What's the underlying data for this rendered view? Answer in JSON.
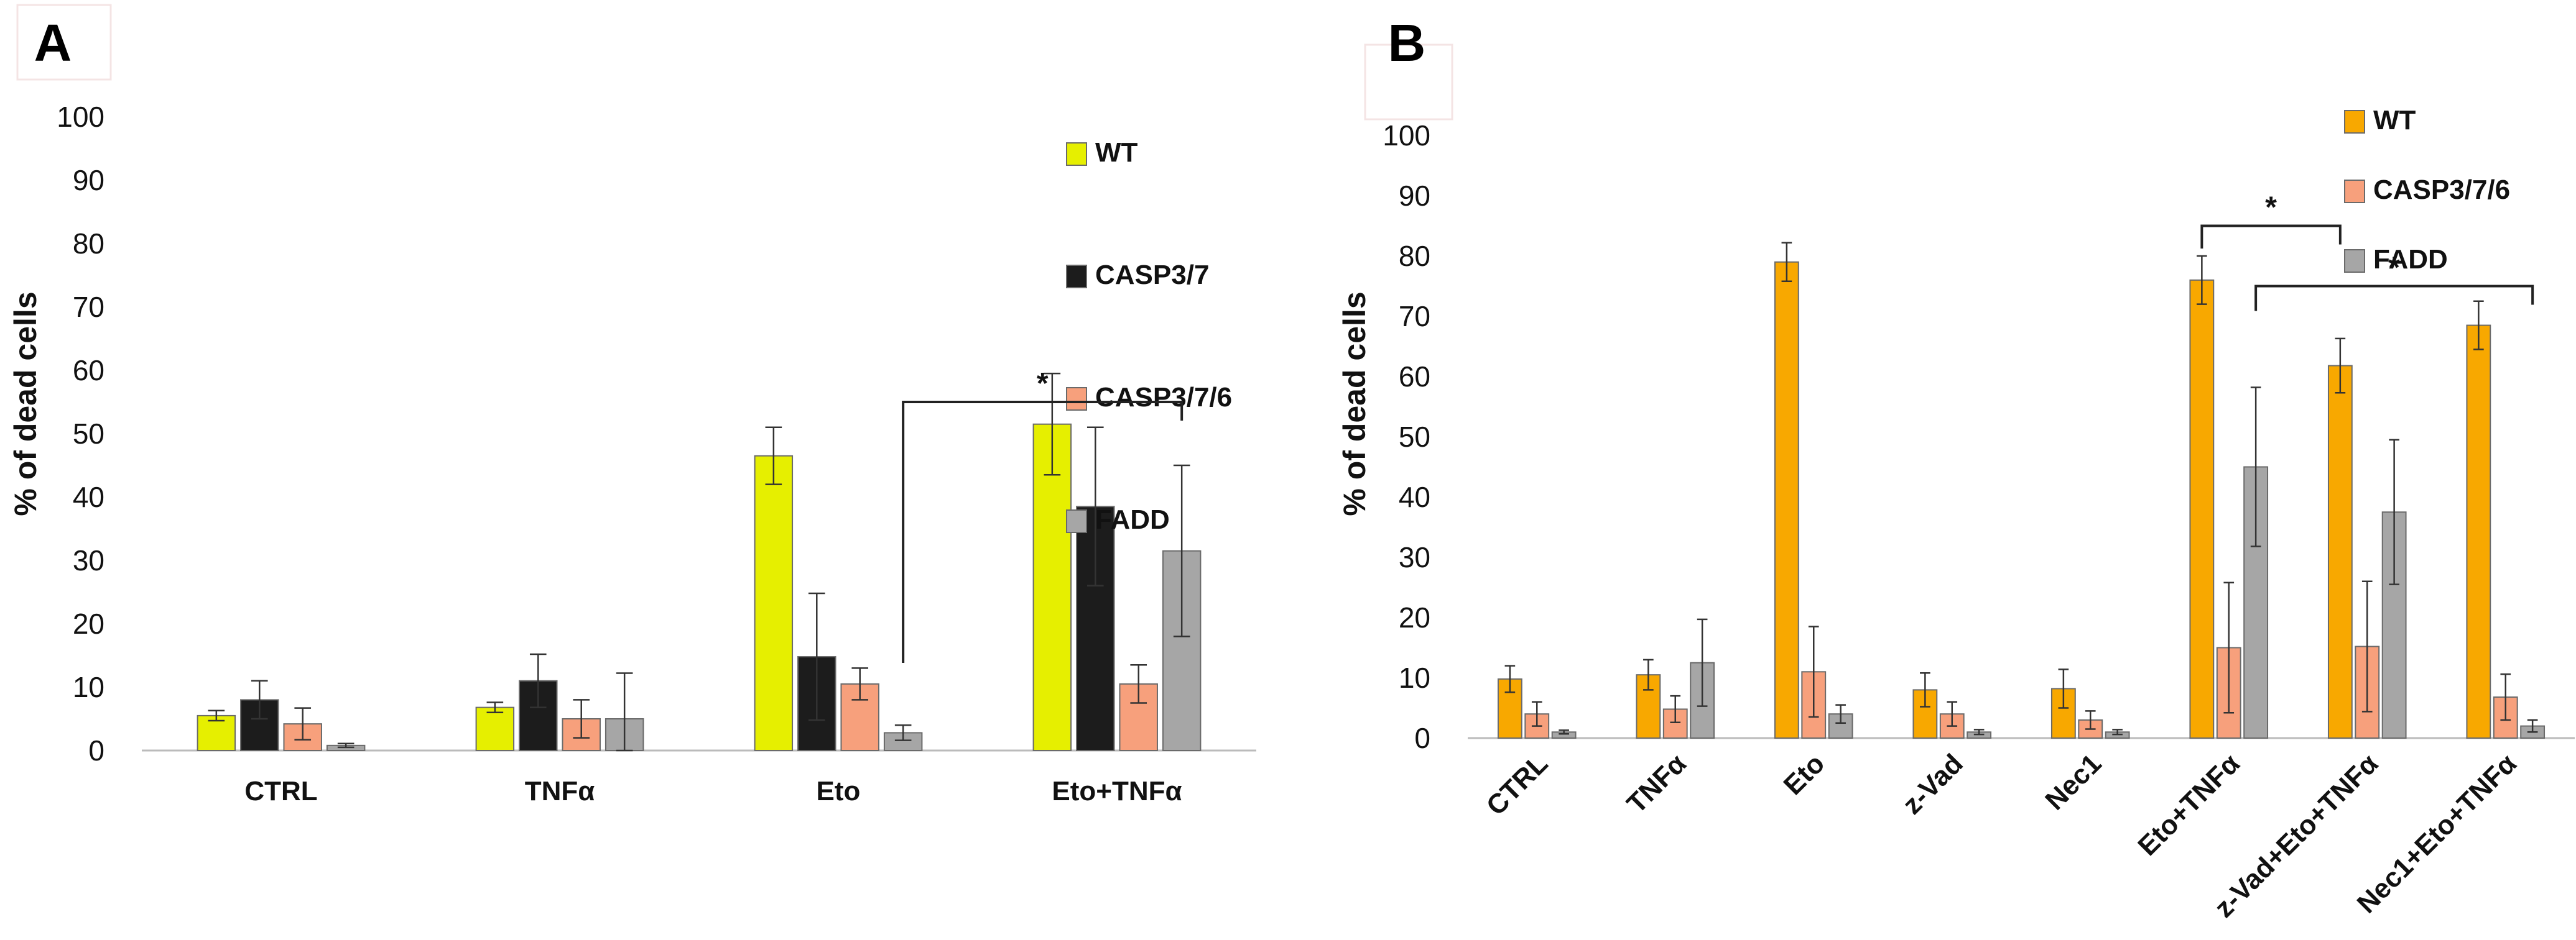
{
  "colors": {
    "WT_A": "#e6ef00",
    "CASP3/7": "#1c1c1c",
    "CASP3/7/6": "#f7a07c",
    "FADD": "#a6a6a6",
    "WT_B": "#f8a800"
  },
  "chart_data": [
    {
      "type": "bar",
      "panel": "A",
      "title": "",
      "xlabel": "",
      "ylabel": "% of dead cells",
      "ylim": [
        0,
        100
      ],
      "yticks": [
        0,
        10,
        20,
        30,
        40,
        50,
        60,
        70,
        80,
        90,
        100
      ],
      "legend_position": "top-right",
      "categories": [
        "CTRL",
        "TNFα",
        "Eto",
        "Eto+TNFα"
      ],
      "series": [
        {
          "name": "WT",
          "color_key": "WT_A",
          "values": [
            5.5,
            6.8,
            46.5,
            51.5
          ],
          "errors": [
            0.8,
            0.8,
            4.5,
            8.0
          ]
        },
        {
          "name": "CASP3/7",
          "color_key": "CASP3/7",
          "values": [
            8.0,
            11.0,
            14.8,
            38.5
          ],
          "errors": [
            3.0,
            4.2,
            10.0,
            12.5
          ]
        },
        {
          "name": "CASP3/7/6",
          "color_key": "CASP3/7/6",
          "values": [
            4.2,
            5.0,
            10.5,
            10.5
          ],
          "errors": [
            2.5,
            3.0,
            2.5,
            3.0
          ]
        },
        {
          "name": "FADD",
          "color_key": "FADD",
          "values": [
            0.8,
            5.0,
            2.8,
            31.5
          ],
          "errors": [
            0.3,
            7.2,
            1.2,
            13.5
          ]
        }
      ],
      "annotations": [
        {
          "text": "*",
          "from": {
            "category": "Eto",
            "series": "FADD"
          },
          "to": {
            "category": "Eto+TNFα",
            "series": "FADD"
          },
          "y": 55
        }
      ]
    },
    {
      "type": "bar",
      "panel": "B",
      "title": "",
      "xlabel": "",
      "ylabel": "% of dead cells",
      "ylim": [
        0,
        100
      ],
      "yticks": [
        0,
        10,
        20,
        30,
        40,
        50,
        60,
        70,
        80,
        90,
        100
      ],
      "legend_position": "top-right",
      "categories": [
        "CTRL",
        "TNFα",
        "Eto",
        "z-Vad",
        "Nec1",
        "Eto+TNFα",
        "z-Vad+Eto+TNFα",
        "Nec1+Eto+TNFα"
      ],
      "series": [
        {
          "name": "WT",
          "color_key": "WT_B",
          "values": [
            9.8,
            10.5,
            79.0,
            8.0,
            8.2,
            76.0,
            61.8,
            68.5
          ],
          "errors": [
            2.2,
            2.5,
            3.2,
            2.8,
            3.2,
            4.0,
            4.5,
            4.0
          ]
        },
        {
          "name": "CASP3/7/6",
          "color_key": "CASP3/7/6",
          "values": [
            4.0,
            4.8,
            11.0,
            4.0,
            3.0,
            15.0,
            15.2,
            6.8
          ],
          "errors": [
            2.0,
            2.2,
            7.5,
            2.0,
            1.5,
            10.8,
            10.8,
            3.8
          ]
        },
        {
          "name": "FADD",
          "color_key": "FADD",
          "values": [
            1.0,
            12.5,
            4.0,
            1.0,
            1.0,
            45.0,
            37.5,
            2.0
          ],
          "errors": [
            0.3,
            7.2,
            1.5,
            0.4,
            0.4,
            13.2,
            12.0,
            1.0
          ]
        }
      ],
      "annotations": [
        {
          "text": "*",
          "from": {
            "category": "Eto+TNFα",
            "series": "WT"
          },
          "to": {
            "category": "z-Vad+Eto+TNFα",
            "series": "WT"
          },
          "y": 85
        },
        {
          "text": "*",
          "from": {
            "category": "Eto+TNFα",
            "series": "FADD"
          },
          "to": {
            "category": "Nec1+Eto+TNFα",
            "series": "FADD"
          },
          "y": 75
        }
      ]
    }
  ]
}
